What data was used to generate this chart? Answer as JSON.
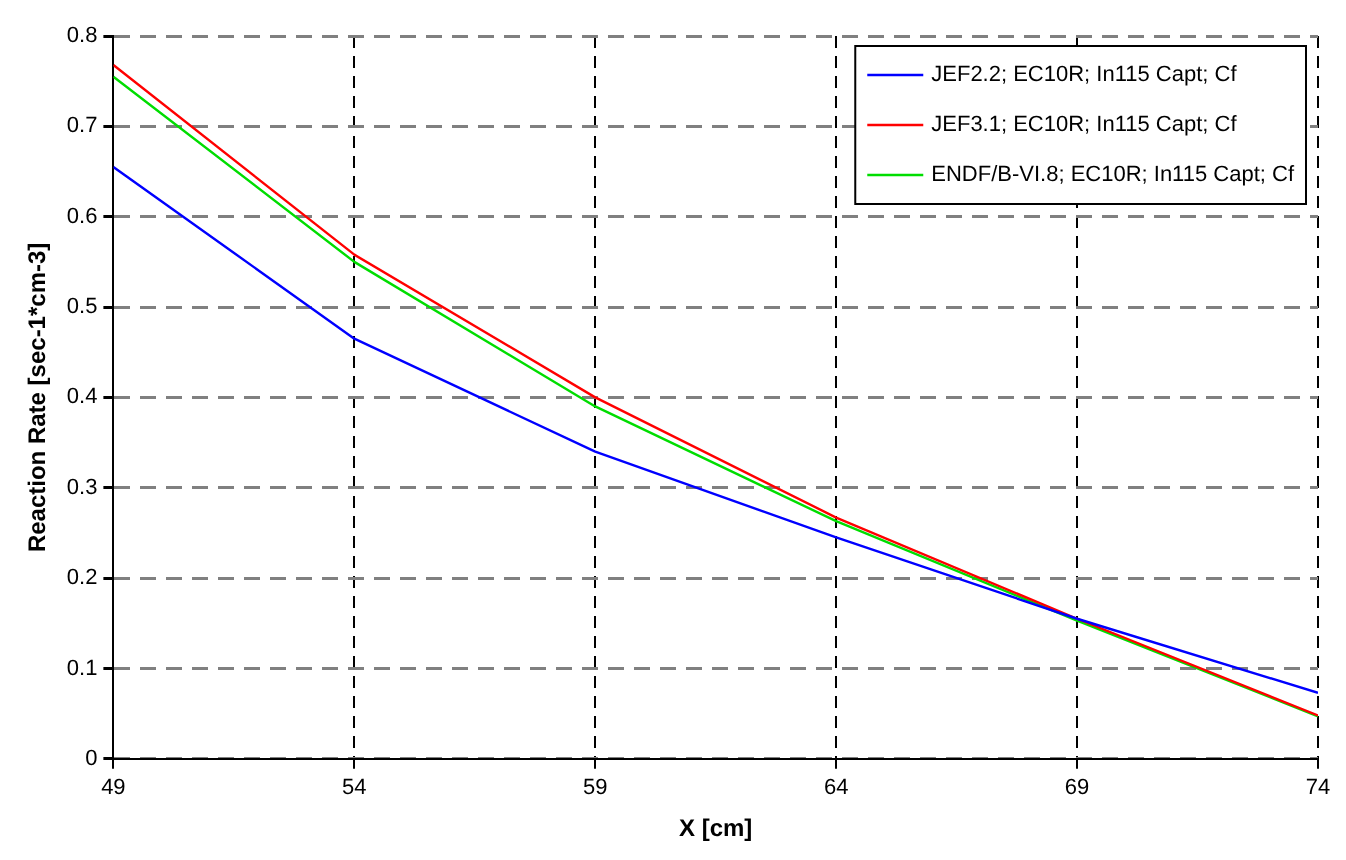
{
  "chart_data": {
    "type": "line",
    "xlabel": "X [cm]",
    "ylabel": "Reaction Rate [sec-1*cm-3]",
    "x": [
      49,
      54,
      59,
      64,
      69,
      74
    ],
    "series": [
      {
        "name": "JEF2.2; EC10R; In115 Capt; Cf",
        "color": "#0000ff",
        "values": [
          0.655,
          0.465,
          0.34,
          0.245,
          0.155,
          0.073
        ]
      },
      {
        "name": "JEF3.1; EC10R; In115 Capt; Cf",
        "color": "#ff0000",
        "values": [
          0.768,
          0.558,
          0.4,
          0.267,
          0.155,
          0.048
        ]
      },
      {
        "name": "ENDF/B-VI.8; EC10R; In115 Capt; Cf",
        "color": "#00dd00",
        "values": [
          0.755,
          0.55,
          0.39,
          0.263,
          0.153,
          0.047
        ]
      }
    ],
    "xlim": [
      49,
      74
    ],
    "xticks": [
      49,
      54,
      59,
      64,
      69,
      74
    ],
    "ylim": [
      0,
      0.8
    ],
    "yticks": [
      0,
      0.1,
      0.2,
      0.3,
      0.4,
      0.5,
      0.6,
      0.7,
      0.8
    ],
    "grid": true,
    "legend": "top right",
    "marker": "none",
    "line_style": "solid"
  }
}
